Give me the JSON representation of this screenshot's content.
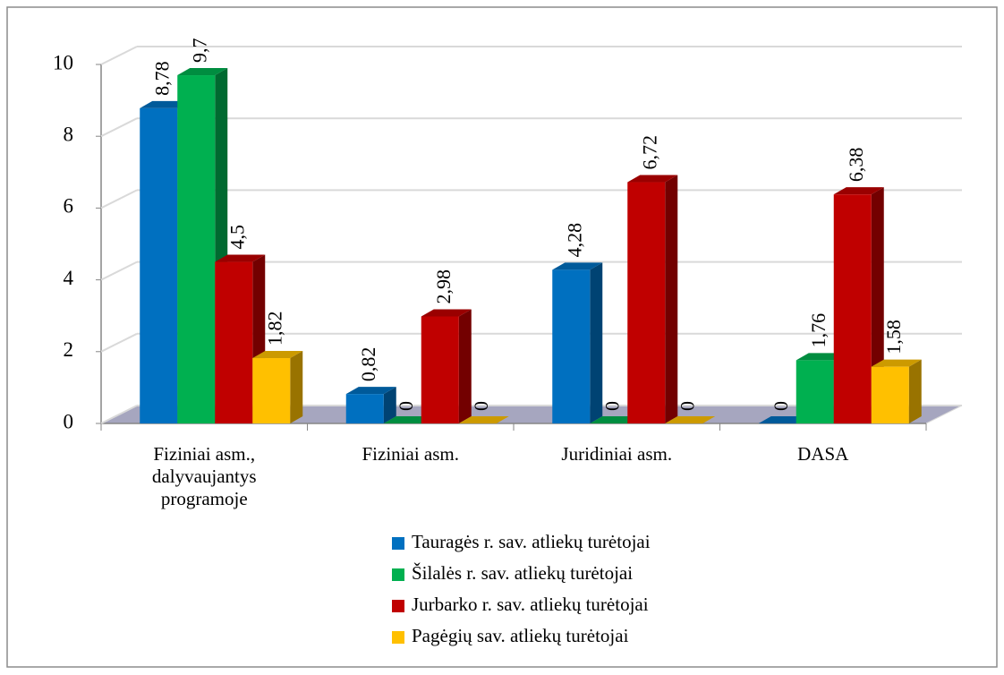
{
  "chart_data": {
    "type": "bar3d",
    "categories": [
      "Fiziniai asm., dalyvaujantys programoje",
      "Fiziniai asm.",
      "Juridiniai asm.",
      "DASA"
    ],
    "series": [
      {
        "name": "Tauragės r. sav. atliekų turėtojai",
        "color": "#0070c0",
        "values": [
          8.78,
          0.82,
          4.28,
          0
        ],
        "value_labels": [
          "8,78",
          "0,82",
          "4,28",
          "0"
        ]
      },
      {
        "name": "Šilalės r. sav. atliekų turėtojai",
        "color": "#00b050",
        "values": [
          9.7,
          0,
          0,
          1.76
        ],
        "value_labels": [
          "9,7",
          "0",
          "0",
          "1,76"
        ]
      },
      {
        "name": "Jurbarko r. sav. atliekų turėtojai",
        "color": "#c00000",
        "values": [
          4.5,
          2.98,
          6.72,
          6.38
        ],
        "value_labels": [
          "4,5",
          "2,98",
          "6,72",
          "6,38"
        ]
      },
      {
        "name": "Pagėgių sav. atliekų turėtojai",
        "color": "#ffc000",
        "values": [
          1.82,
          0,
          0,
          1.58
        ],
        "value_labels": [
          "1,82",
          "0",
          "0",
          "1,58"
        ]
      }
    ],
    "ylim": [
      0,
      10
    ],
    "yticks": [
      0,
      2,
      4,
      6,
      8,
      10
    ],
    "grid": true,
    "legend": "bottom"
  }
}
